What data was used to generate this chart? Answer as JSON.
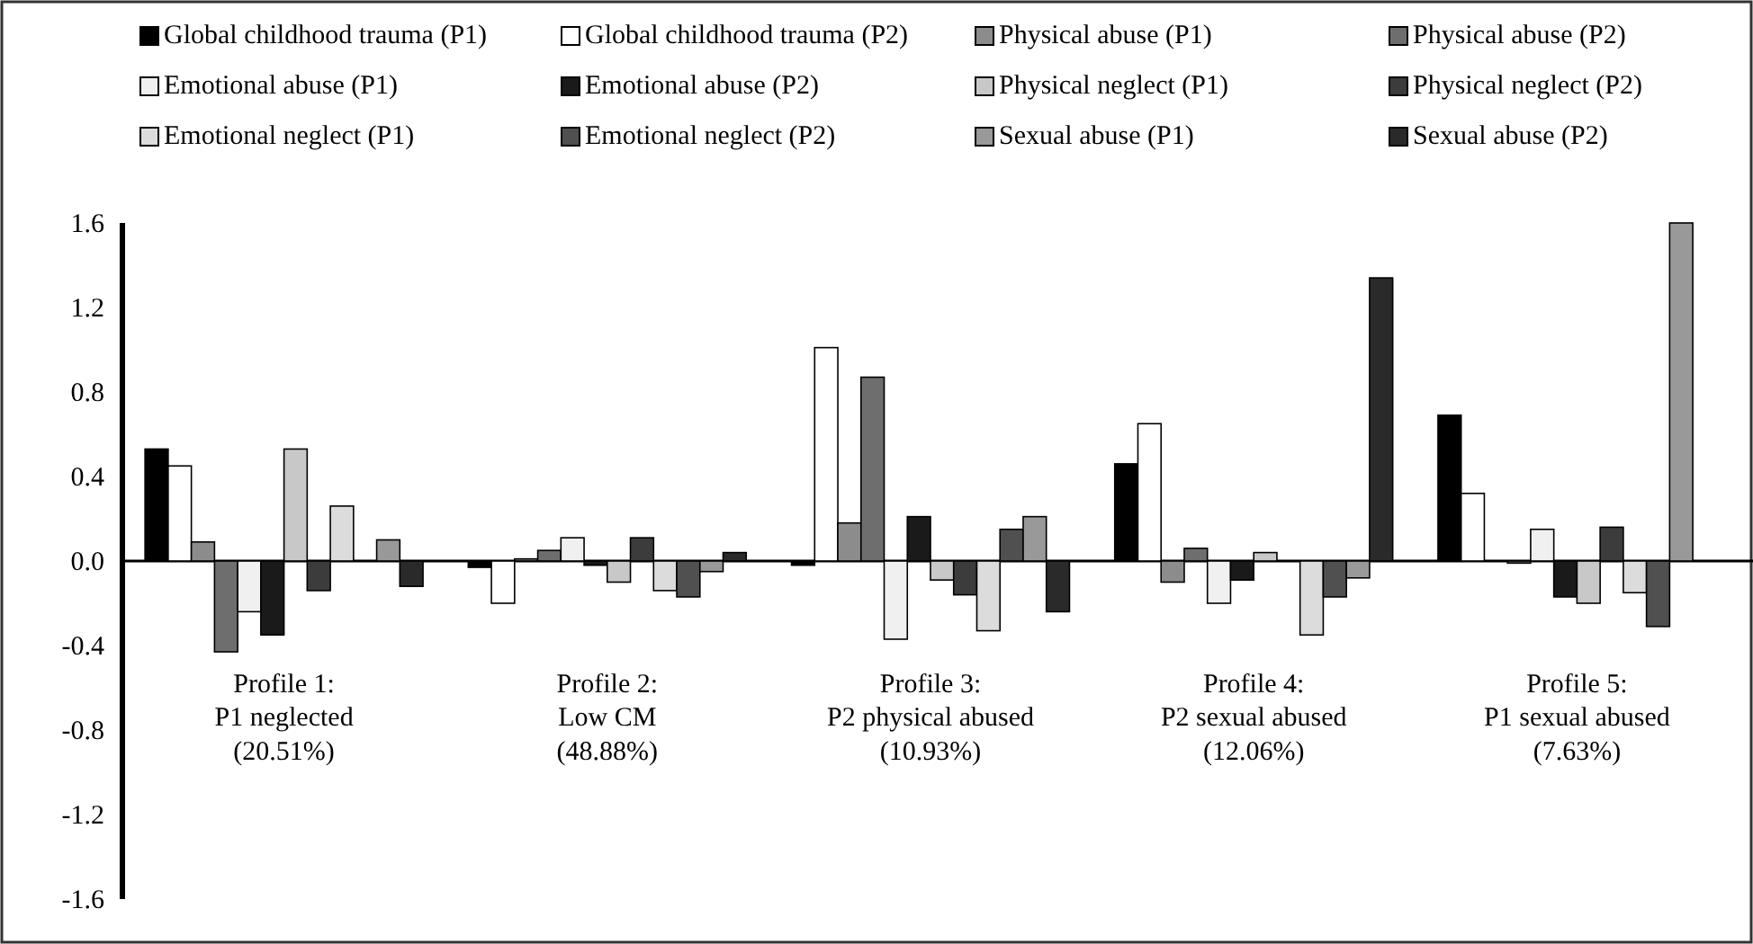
{
  "chart_data": {
    "type": "bar",
    "categories": [
      "Profile 1:\nP1 neglected\n(20.51%)",
      "Profile 2:\nLow CM\n(48.88%)",
      "Profile 3:\nP2 physical abused\n(10.93%)",
      "Profile 4:\nP2 sexual abused\n(12.06%)",
      "Profile 5:\nP1 sexual abused\n(7.63%)"
    ],
    "series": [
      {
        "name": "Global childhood trauma (P1)",
        "color": "#000000",
        "values": [
          0.53,
          -0.03,
          -0.02,
          0.46,
          0.69
        ]
      },
      {
        "name": "Global childhood trauma (P2)",
        "color": "#ffffff",
        "values": [
          0.45,
          -0.2,
          1.01,
          0.65,
          0.32
        ]
      },
      {
        "name": "Physical abuse (P1)",
        "color": "#8c8c8c",
        "values": [
          0.09,
          0.01,
          0.18,
          -0.1,
          0
        ]
      },
      {
        "name": "Physical abuse (P2)",
        "color": "#6e6e6e",
        "values": [
          -0.43,
          0.05,
          0.87,
          0.06,
          -0.01
        ]
      },
      {
        "name": "Emotional abuse (P1)",
        "color": "#f0f0f0",
        "values": [
          -0.24,
          0.11,
          -0.37,
          -0.2,
          0.15
        ]
      },
      {
        "name": "Emotional abuse (P2)",
        "color": "#1a1a1a",
        "values": [
          -0.35,
          -0.02,
          0.21,
          -0.09,
          -0.17
        ]
      },
      {
        "name": "Physical neglect (P1)",
        "color": "#c8c8c8",
        "values": [
          0.53,
          -0.1,
          -0.09,
          0.04,
          -0.2
        ]
      },
      {
        "name": "Physical neglect (P2)",
        "color": "#3c3c3c",
        "values": [
          -0.14,
          0.11,
          -0.16,
          0,
          0.16
        ]
      },
      {
        "name": "Emotional neglect (P1)",
        "color": "#dcdcdc",
        "values": [
          0.26,
          -0.14,
          -0.33,
          -0.35,
          -0.15
        ]
      },
      {
        "name": "Emotional neglect (P2)",
        "color": "#505050",
        "values": [
          0,
          -0.17,
          0.15,
          -0.17,
          -0.31
        ]
      },
      {
        "name": "Sexual abuse (P1)",
        "color": "#999999",
        "values": [
          0.1,
          -0.05,
          0.21,
          -0.08,
          1.6
        ]
      },
      {
        "name": "Sexual abuse (P2)",
        "color": "#2a2a2a",
        "values": [
          -0.12,
          0.04,
          -0.24,
          1.34,
          0
        ]
      }
    ],
    "ylim": [
      -1.6,
      1.6
    ],
    "yticks": [
      {
        "value": -1.6,
        "label": "-1.6"
      },
      {
        "value": -1.2,
        "label": "-1.2"
      },
      {
        "value": -0.8,
        "label": "-0.8"
      },
      {
        "value": -0.4,
        "label": "-0.4"
      },
      {
        "value": 0,
        "label": "0.0"
      },
      {
        "value": 0.4,
        "label": "0.4"
      },
      {
        "value": 0.8,
        "label": "0.8"
      },
      {
        "value": 1.2,
        "label": "1.2"
      },
      {
        "value": 1.6,
        "label": "1.6"
      }
    ],
    "legend": "top"
  }
}
